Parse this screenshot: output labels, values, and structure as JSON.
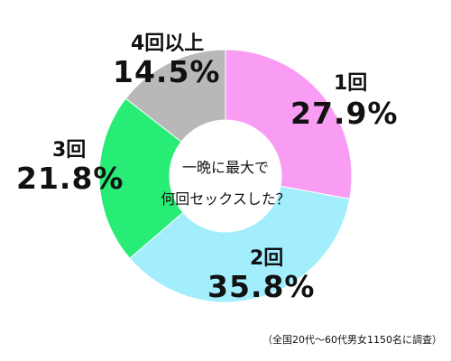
{
  "chart_data": {
    "type": "pie",
    "title_lines": [
      "一晩に最大で",
      "何回セックスした？"
    ],
    "note": "（全国20代〜60代男女1150名に調査）",
    "slices": [
      {
        "label": "1回",
        "value": 27.9,
        "pct_text": "27.9%",
        "color": "#f99df4"
      },
      {
        "label": "2回",
        "value": 35.8,
        "pct_text": "35.8%",
        "color": "#a2eefd"
      },
      {
        "label": "3回",
        "value": 21.8,
        "pct_text": "21.8%",
        "color": "#27ec76"
      },
      {
        "label": "4回以上",
        "value": 14.5,
        "pct_text": "14.5%",
        "color": "#b8b8b8"
      }
    ]
  }
}
